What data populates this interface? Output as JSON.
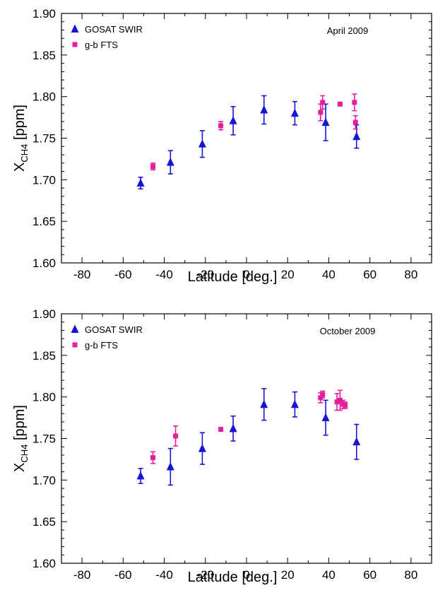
{
  "colors": {
    "gosat": "#1515d6",
    "fts": "#e61e9c",
    "axis": "#000000"
  },
  "chart_data": [
    {
      "type": "scatter",
      "annotation": "April 2009",
      "xlabel": "Latitude [deg.]",
      "ylabel_main": "X",
      "ylabel_sub": "CH4",
      "ylabel_unit": " [ppm]",
      "xlim": [
        -90,
        90
      ],
      "ylim": [
        1.6,
        1.9
      ],
      "xticks": [
        -80,
        -60,
        -40,
        -20,
        0,
        20,
        40,
        60,
        80
      ],
      "yticks": [
        1.6,
        1.65,
        1.7,
        1.75,
        1.8,
        1.85,
        1.9
      ],
      "legend": [
        {
          "name": "GOSAT SWIR",
          "marker": "triangle",
          "color": "#1515d6"
        },
        {
          "name": "g-b FTS",
          "marker": "square",
          "color": "#e61e9c"
        }
      ],
      "series": [
        {
          "name": "GOSAT SWIR",
          "marker": "triangle",
          "color": "#1515d6",
          "points": [
            {
              "x": -51.5,
              "y": 1.696,
              "err": 0.007
            },
            {
              "x": -37,
              "y": 1.721,
              "err": 0.014
            },
            {
              "x": -21.5,
              "y": 1.743,
              "err": 0.016
            },
            {
              "x": -6.5,
              "y": 1.771,
              "err": 0.017
            },
            {
              "x": 8.5,
              "y": 1.784,
              "err": 0.017
            },
            {
              "x": 23.5,
              "y": 1.78,
              "err": 0.014
            },
            {
              "x": 38.5,
              "y": 1.769,
              "err": 0.022
            },
            {
              "x": 53.5,
              "y": 1.752,
              "err": 0.014
            }
          ]
        },
        {
          "name": "g-b FTS",
          "marker": "square",
          "color": "#e61e9c",
          "points": [
            {
              "x": -45.5,
              "y": 1.716,
              "err": 0.004
            },
            {
              "x": -12.5,
              "y": 1.765,
              "err": 0.005
            },
            {
              "x": 36,
              "y": 1.781,
              "err": 0.01
            },
            {
              "x": 37,
              "y": 1.793,
              "err": 0.008
            },
            {
              "x": 45.5,
              "y": 1.791,
              "err": 0
            },
            {
              "x": 52.5,
              "y": 1.793,
              "err": 0.01
            },
            {
              "x": 53,
              "y": 1.769,
              "err": 0.008
            }
          ]
        }
      ]
    },
    {
      "type": "scatter",
      "annotation": "October 2009",
      "xlabel": "Latitude [deg.]",
      "ylabel_main": "X",
      "ylabel_sub": "CH4",
      "ylabel_unit": " [ppm]",
      "xlim": [
        -90,
        90
      ],
      "ylim": [
        1.6,
        1.9
      ],
      "xticks": [
        -80,
        -60,
        -40,
        -20,
        0,
        20,
        40,
        60,
        80
      ],
      "yticks": [
        1.6,
        1.65,
        1.7,
        1.75,
        1.8,
        1.85,
        1.9
      ],
      "legend": [
        {
          "name": "GOSAT SWIR",
          "marker": "triangle",
          "color": "#1515d6"
        },
        {
          "name": "g-b FTS",
          "marker": "square",
          "color": "#e61e9c"
        }
      ],
      "series": [
        {
          "name": "GOSAT SWIR",
          "marker": "triangle",
          "color": "#1515d6",
          "points": [
            {
              "x": -51.5,
              "y": 1.705,
              "err": 0.009
            },
            {
              "x": -37,
              "y": 1.716,
              "err": 0.022
            },
            {
              "x": -21.5,
              "y": 1.738,
              "err": 0.019
            },
            {
              "x": -6.5,
              "y": 1.762,
              "err": 0.015
            },
            {
              "x": 8.5,
              "y": 1.791,
              "err": 0.019
            },
            {
              "x": 23.5,
              "y": 1.791,
              "err": 0.015
            },
            {
              "x": 38.5,
              "y": 1.775,
              "err": 0.021
            },
            {
              "x": 53.5,
              "y": 1.746,
              "err": 0.021
            }
          ]
        },
        {
          "name": "g-b FTS",
          "marker": "square",
          "color": "#e61e9c",
          "points": [
            {
              "x": -45.5,
              "y": 1.727,
              "err": 0.007
            },
            {
              "x": -34.5,
              "y": 1.753,
              "err": 0.012
            },
            {
              "x": -12.5,
              "y": 1.761,
              "err": 0
            },
            {
              "x": 36,
              "y": 1.799,
              "err": 0.006
            },
            {
              "x": 37,
              "y": 1.803,
              "err": 0.004
            },
            {
              "x": 44,
              "y": 1.794,
              "err": 0.01
            },
            {
              "x": 45.5,
              "y": 1.796,
              "err": 0.012
            },
            {
              "x": 47,
              "y": 1.791,
              "err": 0.005
            },
            {
              "x": 48,
              "y": 1.79,
              "err": 0.004
            }
          ]
        }
      ]
    }
  ]
}
